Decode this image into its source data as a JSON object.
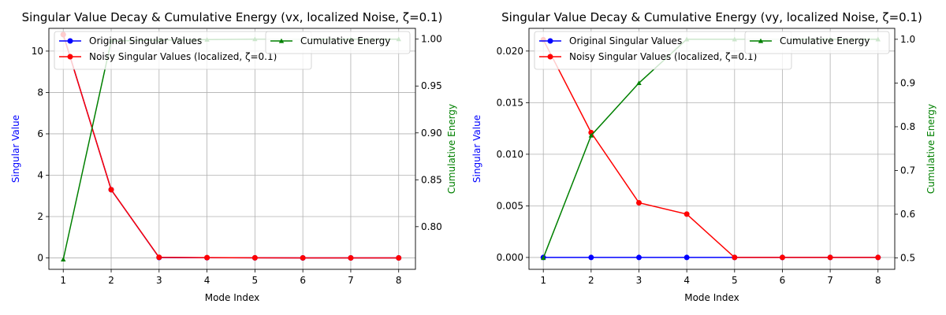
{
  "chart_data": [
    {
      "type": "line",
      "title": "Singular Value Decay & Cumulative Energy (vx, localized Noise, ζ=0.1)",
      "xlabel": "Mode Index",
      "ylabel": "Singular Value",
      "y2label": "Cumulative Energy",
      "x": [
        1,
        2,
        3,
        4,
        5,
        6,
        7,
        8
      ],
      "xlim": [
        0.7,
        8.35
      ],
      "ylim": [
        -0.55,
        11.1
      ],
      "y2lim": [
        0.7545,
        1.0115
      ],
      "yticks": [
        0,
        2,
        4,
        6,
        8,
        10
      ],
      "y2ticks": [
        0.8,
        0.85,
        0.9,
        0.95,
        1.0
      ],
      "grid": true,
      "series": [
        {
          "name": "Original Singular Values",
          "axis": "left",
          "color": "#0000ff",
          "marker": "circle",
          "values": [
            10.8,
            3.3,
            0.02,
            0.01,
            0.005,
            0.003,
            0.002,
            0.001
          ]
        },
        {
          "name": "Noisy Singular Values (localized, ζ=0.1)",
          "axis": "left",
          "color": "#ff0000",
          "marker": "circle",
          "values": [
            10.8,
            3.3,
            0.03,
            0.015,
            0.008,
            0.004,
            0.003,
            0.002
          ]
        },
        {
          "name": "Cumulative Energy",
          "axis": "right",
          "color": "#008000",
          "marker": "triangle",
          "values": [
            0.765,
            0.998,
            0.999,
            0.9995,
            1.0,
            1.0,
            1.0,
            1.0
          ]
        }
      ],
      "legend_left_position": "upper left",
      "legend_right_position": "upper right"
    },
    {
      "type": "line",
      "title": "Singular Value Decay & Cumulative Energy (vy, localized Noise, ζ=0.1)",
      "xlabel": "Mode Index",
      "ylabel": "Singular Value",
      "y2label": "Cumulative Energy",
      "x": [
        1,
        2,
        3,
        4,
        5,
        6,
        7,
        8
      ],
      "xlim": [
        0.7,
        8.35
      ],
      "ylim": [
        -0.00115,
        0.0222
      ],
      "y2lim": [
        0.474,
        1.025
      ],
      "yticks": [
        0.0,
        0.005,
        0.01,
        0.015,
        0.02
      ],
      "y2ticks": [
        0.5,
        0.6,
        0.7,
        0.8,
        0.9,
        1.0
      ],
      "grid": true,
      "series": [
        {
          "name": "Original Singular Values",
          "axis": "left",
          "color": "#0000ff",
          "marker": "circle",
          "values": [
            0.0,
            0.0,
            0.0,
            0.0,
            0.0,
            0.0,
            0.0,
            0.0
          ]
        },
        {
          "name": "Noisy Singular Values (localized, ζ=0.1)",
          "axis": "left",
          "color": "#ff0000",
          "marker": "circle",
          "values": [
            0.0211,
            0.0121,
            0.0053,
            0.0042,
            0.0,
            0.0,
            0.0,
            0.0
          ]
        },
        {
          "name": "Cumulative Energy",
          "axis": "right",
          "color": "#008000",
          "marker": "triangle",
          "values": [
            0.5,
            0.78,
            0.9,
            1.0,
            1.0,
            1.0,
            1.0,
            1.0
          ]
        }
      ],
      "legend_left_position": "upper left",
      "legend_right_position": "upper right"
    }
  ]
}
